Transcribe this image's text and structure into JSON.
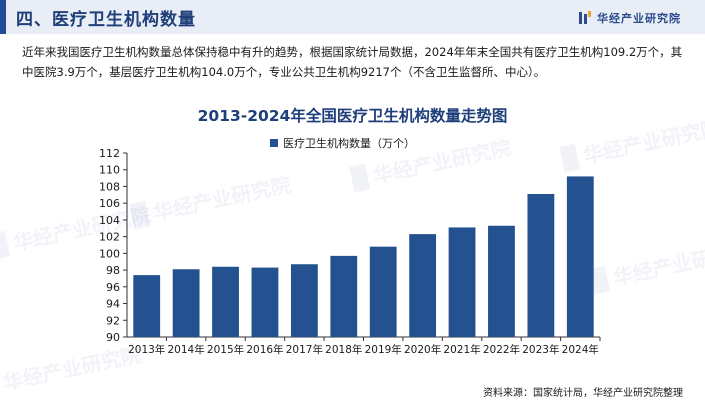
{
  "header": {
    "section_title": "四、医疗卫生机构数量",
    "brand_name": "华经产业研究院"
  },
  "intro_text": "近年来我国医疗卫生机构数量总体保持稳中有升的趋势，根据国家统计局数据，2024年年末全国共有医疗卫生机构109.2万个，其中医院3.9万个，基层医疗卫生机构104.0万个，专业公共卫生机构9217个（不含卫生监督所、中心）。",
  "watermark_text": "华经产业研究院",
  "colors": {
    "bar": "#24518f",
    "title": "#1f3f7a",
    "accent": "#1f4e96"
  },
  "chart_data": {
    "type": "bar",
    "title": "2013-2024年全国医疗卫生机构数量走势图",
    "legend": "医疗卫生机构数量（万个）",
    "categories": [
      "2013年",
      "2014年",
      "2015年",
      "2016年",
      "2017年",
      "2018年",
      "2019年",
      "2020年",
      "2021年",
      "2022年",
      "2023年",
      "2024年"
    ],
    "values": [
      97.4,
      98.1,
      98.4,
      98.3,
      98.7,
      99.7,
      100.8,
      102.3,
      103.1,
      103.3,
      107.1,
      109.2
    ],
    "ylim": [
      90,
      112
    ],
    "yticks": [
      90,
      92,
      94,
      96,
      98,
      100,
      102,
      104,
      106,
      108,
      110,
      112
    ],
    "xlabel": "",
    "ylabel": ""
  },
  "source": "资料来源：国家统计局，华经产业研究院整理"
}
